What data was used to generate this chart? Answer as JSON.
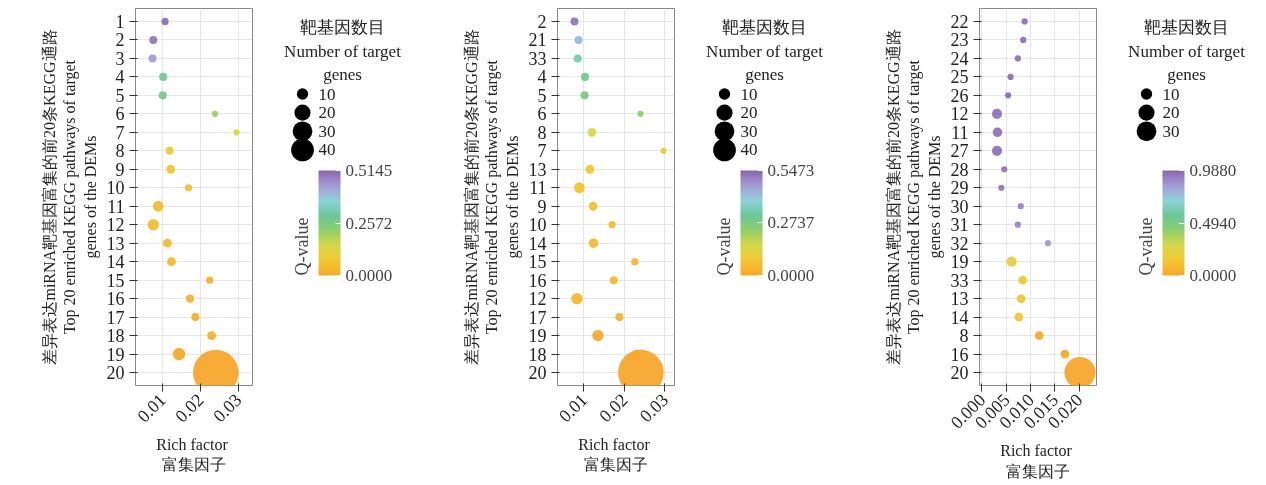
{
  "chart_data": [
    {
      "type": "bubble",
      "orientation": "horizontal",
      "xlabel": "Rich  factor\n富集因子",
      "ylabel": "差异表达miRNA靶基因富集的前20条KEGG通路\nTop 20 enriched KEGG pathways of target\ngenes of the DEMs",
      "legend_title": "靶基因数目\nNumber of target\ngenes",
      "clabel": "Q-value",
      "categories": [
        "1",
        "2",
        "3",
        "4",
        "5",
        "6",
        "7",
        "8",
        "9",
        "10",
        "11",
        "12",
        "13",
        "14",
        "15",
        "16",
        "17",
        "18",
        "19",
        "20"
      ],
      "values": [
        0.0107,
        0.0076,
        0.0074,
        0.0102,
        0.0101,
        0.0239,
        0.0296,
        0.0119,
        0.0122,
        0.0169,
        0.0089,
        0.0076,
        0.0113,
        0.0124,
        0.0225,
        0.0173,
        0.0187,
        0.023,
        0.0144,
        0.0241
      ],
      "sizes": [
        4,
        5,
        5,
        5,
        5,
        3,
        3,
        5,
        6,
        4,
        9,
        10,
        6,
        6,
        4,
        5,
        5,
        6,
        12,
        160
      ],
      "size_legend": [
        10,
        20,
        30,
        40
      ],
      "cvalues": [
        0.5,
        0.49,
        0.44,
        0.27,
        0.27,
        0.21,
        0.15,
        0.1,
        0.07,
        0.06,
        0.05,
        0.05,
        0.05,
        0.04,
        0.03,
        0.03,
        0.02,
        0.02,
        0.01,
        0.0
      ],
      "clim": [
        0,
        0.5145
      ],
      "cticks": [
        {
          "value": 0,
          "label": "0.0000"
        },
        {
          "value": 0.2572,
          "label": "0.2572"
        },
        {
          "value": 0.5145,
          "label": "0.5145"
        }
      ],
      "xlim": [
        0.0029,
        0.0338
      ],
      "xticks": [
        0.01,
        0.02,
        0.03
      ],
      "grid": true
    },
    {
      "type": "bubble",
      "orientation": "horizontal",
      "xlabel": "Rich  factor\n富集因子",
      "ylabel": "差异表达miRNA靶基因富集的前20条KEGG通路\nTop 20 enriched KEGG pathways of target\ngenes of the DEMs",
      "legend_title": "靶基因数目\nNumber of target\ngenes",
      "clabel": "Q-value",
      "categories": [
        "2",
        "21",
        "33",
        "4",
        "5",
        "6",
        "8",
        "7",
        "13",
        "11",
        "9",
        "10",
        "14",
        "15",
        "16",
        "12",
        "17",
        "19",
        "18",
        "20"
      ],
      "values": [
        0.0077,
        0.0087,
        0.0085,
        0.0103,
        0.0102,
        0.024,
        0.012,
        0.0297,
        0.0115,
        0.0089,
        0.0123,
        0.017,
        0.0124,
        0.0226,
        0.0174,
        0.0083,
        0.0188,
        0.0135,
        0.023,
        0.0241
      ],
      "sizes": [
        5,
        5,
        5,
        5,
        5,
        3,
        6,
        3,
        6,
        9,
        6,
        4,
        7,
        4,
        5,
        10,
        5,
        10,
        6,
        160
      ],
      "size_legend": [
        10,
        20,
        30,
        40
      ],
      "cvalues": [
        0.52,
        0.42,
        0.34,
        0.29,
        0.28,
        0.23,
        0.16,
        0.15,
        0.08,
        0.07,
        0.06,
        0.05,
        0.05,
        0.04,
        0.04,
        0.04,
        0.03,
        0.01,
        0.01,
        0.0
      ],
      "clim": [
        0,
        0.5473
      ],
      "cticks": [
        {
          "value": 0,
          "label": "0.0000"
        },
        {
          "value": 0.2737,
          "label": "0.2737"
        },
        {
          "value": 0.5473,
          "label": "0.5473"
        }
      ],
      "xlim": [
        0.0035,
        0.0324
      ],
      "xticks": [
        0.01,
        0.02,
        0.03
      ],
      "grid": true
    },
    {
      "type": "bubble",
      "orientation": "horizontal",
      "xlabel": "Rich  factor\n富集因子",
      "ylabel": "差异表达miRNA靶基因富集的前20条KEGG通路\nTop 20 enriched KEGG pathways of target\ngenes of the DEMs",
      "legend_title": "靶基因数目\nNumber of target\ngenes",
      "clabel": "Q-value",
      "categories": [
        "22",
        "23",
        "24",
        "25",
        "26",
        "12",
        "11",
        "27",
        "28",
        "29",
        "30",
        "31",
        "32",
        "19",
        "33",
        "13",
        "14",
        "8",
        "16",
        "20"
      ],
      "values": [
        0.0088,
        0.0085,
        0.0074,
        0.0059,
        0.0054,
        0.0031,
        0.0032,
        0.0031,
        0.0046,
        0.004,
        0.008,
        0.0074,
        0.0136,
        0.0061,
        0.0084,
        0.0081,
        0.0076,
        0.0118,
        0.0171,
        0.0202
      ],
      "sizes": [
        3,
        3,
        3,
        3,
        3,
        8,
        7,
        8,
        3,
        3,
        3,
        3,
        3,
        8,
        6,
        6,
        6,
        6,
        6,
        75
      ],
      "size_legend": [
        10,
        20,
        30
      ],
      "cvalues": [
        0.96,
        0.96,
        0.96,
        0.96,
        0.96,
        0.95,
        0.95,
        0.95,
        0.94,
        0.94,
        0.9,
        0.9,
        0.85,
        0.22,
        0.16,
        0.15,
        0.14,
        0.02,
        0.01,
        0.0
      ],
      "clim": [
        0,
        0.988
      ],
      "cticks": [
        {
          "value": 0,
          "label": "0.0000"
        },
        {
          "value": 0.494,
          "label": "0.4940"
        },
        {
          "value": 0.988,
          "label": "0.9880"
        }
      ],
      "xlim": [
        -0.0005,
        0.0236
      ],
      "xticks": [
        {
          "value": 0,
          "label": "0.000"
        },
        {
          "value": 0.005,
          "label": "0.005"
        },
        {
          "value": 0.01,
          "label": "0.010"
        },
        {
          "value": 0.015,
          "label": "0.015"
        },
        {
          "value": 0.02,
          "label": "0.020"
        }
      ],
      "grid": true
    }
  ]
}
